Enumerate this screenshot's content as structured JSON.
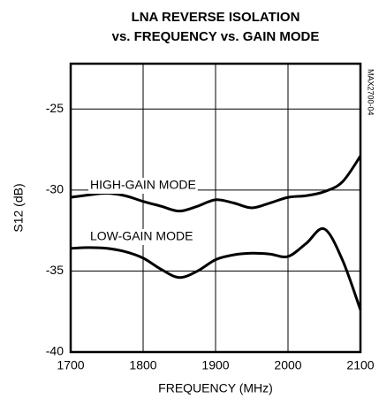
{
  "chart_data": {
    "type": "line",
    "title": [
      "LNA REVERSE ISOLATION",
      "vs. FREQUENCY vs. GAIN MODE"
    ],
    "x_label": "FREQUENCY (MHz)",
    "y_label": "S12 (dB)",
    "annotation": "MAX2700-04",
    "x": [
      1700,
      1725,
      1750,
      1775,
      1800,
      1825,
      1850,
      1875,
      1900,
      1925,
      1950,
      1975,
      2000,
      2025,
      2050,
      2075,
      2100
    ],
    "series": [
      {
        "name": "HIGH-GAIN MODE",
        "color": "#000000",
        "values": [
          -30.45,
          -30.3,
          -30.2,
          -30.35,
          -30.7,
          -31.0,
          -31.3,
          -31.0,
          -30.6,
          -30.8,
          -31.1,
          -30.8,
          -30.45,
          -30.35,
          -30.1,
          -29.5,
          -27.9
        ]
      },
      {
        "name": "LOW-GAIN MODE",
        "color": "#000000",
        "values": [
          -33.6,
          -33.55,
          -33.6,
          -33.8,
          -34.2,
          -34.9,
          -35.4,
          -35.0,
          -34.3,
          -34.0,
          -33.9,
          -33.95,
          -34.1,
          -33.3,
          -32.4,
          -34.3,
          -37.4
        ]
      }
    ],
    "xlim": [
      1700,
      2100
    ],
    "xticks": [
      1700,
      1800,
      1900,
      2000,
      2100
    ],
    "ylim": [
      -40,
      -22.2
    ],
    "yticks": [
      -40,
      -35,
      -30,
      -25
    ],
    "grid": true
  }
}
